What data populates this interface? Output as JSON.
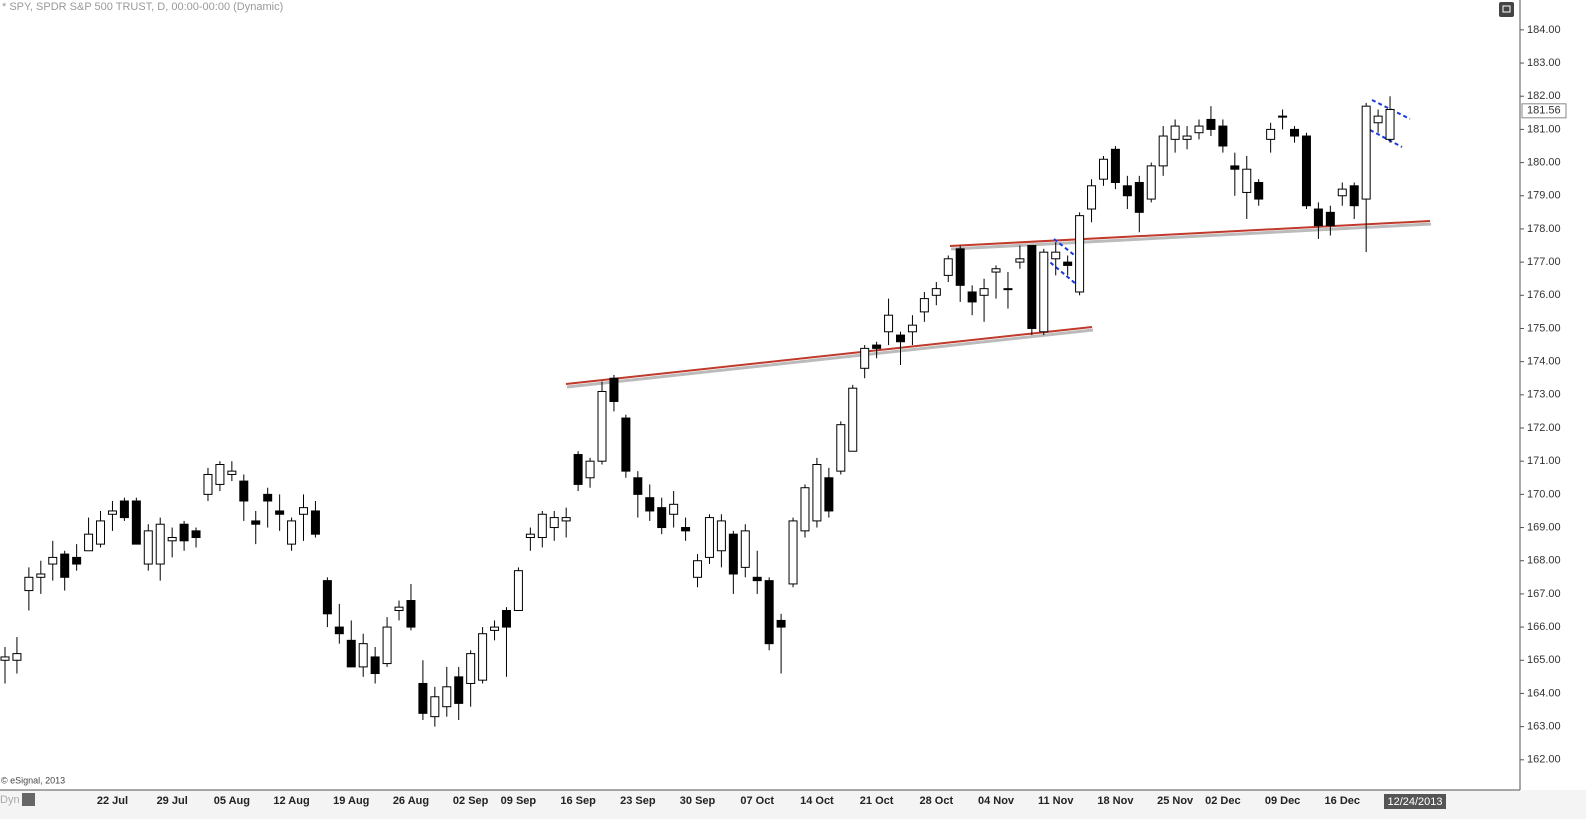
{
  "chart_data": {
    "type": "candlestick",
    "title": "* SPY, SPDR S&P 500 TRUST, D, 00:00-00:00 (Dynamic)",
    "footer": "© eSignal, 2013",
    "mode_label": "Dyn",
    "cursor_date": "12/24/2013",
    "last_price": 181.56,
    "up_color": "#ffffff",
    "down_color": "#000000",
    "wick_color": "#000000",
    "categories": [
      null,
      null,
      null,
      null,
      null,
      null,
      null,
      null,
      null,
      "22 Jul",
      null,
      null,
      null,
      null,
      "29 Jul",
      null,
      null,
      null,
      null,
      "05 Aug",
      null,
      null,
      null,
      null,
      "12 Aug",
      null,
      null,
      null,
      null,
      "19 Aug",
      null,
      null,
      null,
      null,
      "26 Aug",
      null,
      null,
      null,
      null,
      "02 Sep",
      null,
      null,
      null,
      "09 Sep",
      null,
      null,
      null,
      null,
      "16 Sep",
      null,
      null,
      null,
      null,
      "23 Sep",
      null,
      null,
      null,
      null,
      "30 Sep",
      null,
      null,
      null,
      null,
      "07 Oct",
      null,
      null,
      null,
      null,
      "14 Oct",
      null,
      null,
      null,
      null,
      "21 Oct",
      null,
      null,
      null,
      null,
      "28 Oct",
      null,
      null,
      null,
      null,
      "04 Nov",
      null,
      null,
      null,
      null,
      "11 Nov",
      null,
      null,
      null,
      null,
      "18 Nov",
      null,
      null,
      null,
      null,
      "25 Nov",
      null,
      null,
      null,
      "02 Dec",
      null,
      null,
      null,
      null,
      "09 Dec",
      null,
      null,
      null,
      null,
      "16 Dec",
      null,
      null,
      null,
      null
    ],
    "open": [
      165.0,
      165.0,
      167.1,
      167.5,
      167.9,
      168.2,
      168.1,
      168.3,
      168.5,
      169.4,
      169.8,
      169.8,
      167.9,
      167.9,
      168.6,
      169.1,
      168.9,
      170.0,
      170.3,
      170.6,
      170.4,
      169.2,
      170.0,
      169.5,
      168.5,
      169.4,
      169.5,
      167.4,
      166.0,
      165.6,
      164.8,
      165.1,
      164.9,
      166.5,
      166.8,
      164.3,
      163.3,
      163.6,
      164.5,
      164.3,
      164.4,
      165.9,
      166.5,
      166.5,
      168.7,
      168.7,
      169.0,
      169.2,
      171.2,
      170.5,
      171.0,
      173.5,
      172.3,
      170.5,
      169.9,
      169.6,
      169.4,
      169.0,
      167.5,
      168.1,
      168.3,
      168.8,
      167.8,
      167.5,
      167.4,
      166.2,
      167.3,
      168.9,
      169.2,
      170.5,
      170.7,
      171.3,
      173.8,
      174.5,
      174.9,
      174.8,
      174.9,
      175.5,
      176.0,
      176.6,
      177.4,
      176.1,
      176.0,
      176.7,
      176.2,
      177.0,
      177.5,
      174.9,
      177.1,
      177.0,
      176.1,
      178.6,
      179.5,
      180.4,
      179.3,
      179.4,
      178.9,
      179.9,
      180.7,
      180.7,
      180.9,
      181.3,
      181.1,
      179.9,
      179.1,
      179.4,
      180.7,
      181.4,
      181.0,
      180.8,
      178.6,
      178.5,
      179.0,
      179.3,
      178.9,
      181.2,
      180.7
    ],
    "high": [
      165.4,
      165.7,
      167.8,
      168.0,
      168.6,
      168.3,
      168.5,
      169.3,
      169.5,
      169.8,
      169.9,
      169.9,
      169.1,
      169.3,
      169.0,
      169.2,
      169.0,
      170.8,
      171.0,
      171.0,
      170.6,
      169.5,
      170.2,
      170.0,
      169.3,
      170.0,
      169.8,
      167.5,
      166.7,
      166.2,
      165.8,
      165.4,
      166.3,
      166.8,
      167.3,
      165.0,
      164.2,
      164.8,
      164.8,
      165.3,
      166.0,
      166.2,
      166.6,
      167.8,
      169.0,
      169.5,
      169.5,
      169.6,
      171.3,
      171.1,
      173.4,
      173.6,
      172.4,
      170.7,
      170.3,
      169.9,
      170.1,
      169.3,
      168.2,
      169.4,
      169.4,
      168.9,
      169.1,
      168.3,
      167.5,
      166.4,
      169.3,
      170.3,
      171.1,
      170.8,
      172.2,
      173.3,
      174.5,
      174.6,
      175.9,
      174.9,
      175.4,
      176.1,
      176.4,
      177.2,
      177.5,
      176.3,
      176.5,
      176.9,
      176.7,
      177.5,
      177.5,
      177.4,
      177.6,
      177.2,
      178.5,
      179.5,
      180.2,
      180.5,
      179.6,
      179.6,
      180.0,
      181.1,
      181.3,
      181.1,
      181.3,
      181.7,
      181.3,
      180.3,
      180.2,
      179.5,
      181.2,
      181.6,
      181.1,
      180.9,
      178.8,
      178.7,
      179.4,
      179.4,
      181.8,
      181.6,
      182.0
    ],
    "low": [
      164.3,
      164.6,
      166.5,
      167.0,
      167.4,
      167.1,
      167.7,
      168.3,
      168.4,
      168.9,
      169.2,
      168.5,
      167.7,
      167.4,
      168.1,
      168.3,
      168.4,
      169.8,
      170.1,
      170.4,
      169.2,
      168.5,
      169.0,
      168.9,
      168.3,
      168.6,
      168.7,
      166.0,
      165.5,
      164.8,
      164.5,
      164.3,
      164.8,
      166.2,
      165.9,
      163.2,
      163.0,
      163.3,
      163.2,
      163.6,
      164.3,
      165.6,
      164.5,
      166.5,
      168.3,
      168.4,
      168.6,
      168.7,
      170.1,
      170.2,
      170.9,
      172.5,
      170.5,
      169.3,
      169.2,
      168.8,
      169.0,
      168.6,
      167.2,
      167.9,
      167.8,
      167.0,
      167.5,
      167.0,
      165.3,
      164.6,
      167.2,
      168.7,
      169.0,
      169.3,
      170.6,
      171.3,
      173.5,
      174.1,
      174.5,
      173.9,
      174.5,
      175.2,
      175.7,
      176.4,
      175.8,
      175.4,
      175.2,
      175.9,
      175.6,
      176.8,
      174.8,
      174.8,
      176.6,
      176.6,
      176.0,
      178.2,
      179.3,
      179.2,
      178.6,
      177.9,
      178.8,
      179.6,
      180.3,
      180.4,
      180.7,
      180.8,
      180.3,
      179.0,
      178.3,
      178.7,
      180.3,
      181.0,
      180.6,
      178.6,
      177.7,
      177.8,
      178.7,
      178.3,
      177.3,
      180.9,
      180.6
    ],
    "close": [
      165.1,
      165.2,
      167.5,
      167.6,
      168.1,
      167.5,
      167.9,
      168.8,
      169.2,
      169.5,
      169.3,
      168.5,
      168.9,
      169.1,
      168.7,
      168.6,
      168.7,
      170.6,
      170.9,
      170.7,
      169.8,
      169.1,
      169.8,
      169.4,
      169.2,
      169.6,
      168.8,
      166.4,
      165.8,
      164.8,
      165.5,
      164.6,
      166.0,
      166.6,
      166.0,
      163.4,
      163.9,
      164.2,
      163.7,
      165.2,
      165.8,
      166.0,
      166.0,
      167.7,
      168.8,
      169.4,
      169.3,
      169.3,
      170.3,
      171.0,
      173.1,
      172.8,
      170.7,
      170.0,
      169.5,
      169.0,
      169.7,
      168.9,
      168.0,
      169.3,
      169.2,
      167.6,
      168.9,
      167.4,
      165.5,
      166.0,
      169.2,
      170.2,
      170.9,
      169.5,
      172.1,
      173.2,
      174.4,
      174.4,
      175.4,
      174.6,
      175.1,
      175.9,
      176.2,
      177.1,
      176.3,
      175.8,
      176.2,
      176.8,
      176.2,
      177.1,
      175.0,
      177.3,
      177.3,
      176.9,
      178.4,
      179.3,
      180.1,
      179.4,
      179.0,
      178.5,
      179.9,
      180.8,
      181.1,
      180.8,
      181.1,
      181.0,
      180.5,
      179.8,
      179.8,
      178.9,
      181.0,
      181.4,
      180.8,
      178.7,
      178.1,
      178.1,
      179.2,
      178.7,
      181.7,
      181.4,
      181.6
    ],
    "ylim": [
      161.18,
      184.9
    ],
    "yticks": [
      {
        "value": 162,
        "label": "162.00"
      },
      {
        "value": 163,
        "label": "163.00"
      },
      {
        "value": 164,
        "label": "164.00"
      },
      {
        "value": 165,
        "label": "165.00"
      },
      {
        "value": 166,
        "label": "166.00"
      },
      {
        "value": 167,
        "label": "167.00"
      },
      {
        "value": 168,
        "label": "168.00"
      },
      {
        "value": 169,
        "label": "169.00"
      },
      {
        "value": 170,
        "label": "170.00"
      },
      {
        "value": 171,
        "label": "171.00"
      },
      {
        "value": 172,
        "label": "172.00"
      },
      {
        "value": 173,
        "label": "173.00"
      },
      {
        "value": 174,
        "label": "174.00"
      },
      {
        "value": 175,
        "label": "175.00"
      },
      {
        "value": 176,
        "label": "176.00"
      },
      {
        "value": 177,
        "label": "177.00"
      },
      {
        "value": 178,
        "label": "178.00"
      },
      {
        "value": 179,
        "label": "179.00"
      },
      {
        "value": 180,
        "label": "180.00"
      },
      {
        "value": 181,
        "label": "181.00"
      },
      {
        "value": 182,
        "label": "182.00"
      },
      {
        "value": 183,
        "label": "183.00"
      },
      {
        "value": 184,
        "label": "184.00"
      }
    ],
    "grid": false
  }
}
